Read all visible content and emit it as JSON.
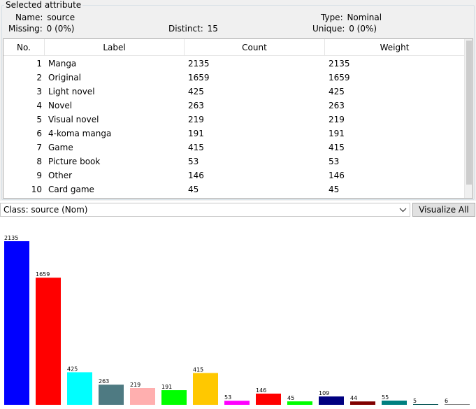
{
  "group_title": "Selected attribute",
  "info": {
    "name_label": "Name:",
    "name_value": "source",
    "missing_label": "Missing:",
    "missing_value": "0 (0%)",
    "distinct_label": "Distinct:",
    "distinct_value": "15",
    "type_label": "Type:",
    "type_value": "Nominal",
    "unique_label": "Unique:",
    "unique_value": "0 (0%)"
  },
  "table": {
    "headers": [
      "No.",
      "Label",
      "Count",
      "Weight"
    ],
    "rows": [
      {
        "no": "1",
        "label": "Manga",
        "count": "2135",
        "weight": "2135"
      },
      {
        "no": "2",
        "label": "Original",
        "count": "1659",
        "weight": "1659"
      },
      {
        "no": "3",
        "label": "Light novel",
        "count": "425",
        "weight": "425"
      },
      {
        "no": "4",
        "label": "Novel",
        "count": "263",
        "weight": "263"
      },
      {
        "no": "5",
        "label": "Visual novel",
        "count": "219",
        "weight": "219"
      },
      {
        "no": "6",
        "label": "4-koma manga",
        "count": "191",
        "weight": "191"
      },
      {
        "no": "7",
        "label": "Game",
        "count": "415",
        "weight": "415"
      },
      {
        "no": "8",
        "label": "Picture book",
        "count": "53",
        "weight": "53"
      },
      {
        "no": "9",
        "label": "Other",
        "count": "146",
        "weight": "146"
      },
      {
        "no": "10",
        "label": "Card game",
        "count": "45",
        "weight": "45"
      }
    ]
  },
  "class_combo": {
    "value": "Class: source (Nom)",
    "arrow_icon": "chevron-down-icon"
  },
  "visualize_button": "Visualize All",
  "chart_data": {
    "type": "bar",
    "values": [
      2135,
      1659,
      425,
      263,
      219,
      191,
      415,
      53,
      146,
      45,
      109,
      44,
      55,
      5,
      6
    ],
    "data_labels": [
      "2135",
      "1659",
      "425",
      "263",
      "219",
      "191",
      "415",
      "53",
      "146",
      "45",
      "109",
      "44",
      "55",
      "5",
      "6"
    ],
    "colors": [
      "#0000ff",
      "#ff0000",
      "#00ffff",
      "#4e7a82",
      "#ffafaf",
      "#00ff00",
      "#ffc800",
      "#ff00ff",
      "#ff0000",
      "#00ff00",
      "#000080",
      "#800000",
      "#008080",
      "#005050",
      "#808080"
    ],
    "ylim": [
      0,
      2135
    ]
  }
}
